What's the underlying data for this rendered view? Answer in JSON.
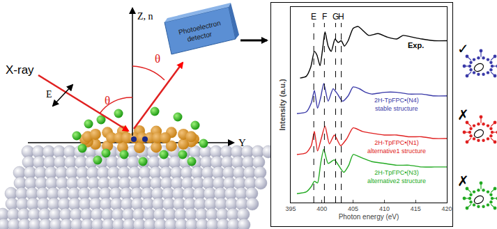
{
  "diagram": {
    "beam_label": "X-ray",
    "field_label": "E⃗",
    "normal_label": "Z, n⃗",
    "surface_axis_label": "Y",
    "angle_label": "θ",
    "detector_label": [
      "Photoelectron",
      "detector"
    ],
    "structure_marks": [
      "✓",
      "✗",
      "✗"
    ]
  },
  "chart_data": {
    "type": "line",
    "x_label": "Photon energy (eV)",
    "y_label": "Intensity (a.u.)",
    "xlim": [
      395,
      420
    ],
    "xticks": [
      395,
      400,
      405,
      410,
      415,
      420
    ],
    "ylim": [
      0,
      11
    ],
    "yticks": [],
    "tick_labels": "x",
    "grid": false,
    "peaks": [
      {
        "label": "E",
        "x": 398.7
      },
      {
        "label": "F",
        "x": 400.4
      },
      {
        "label": "G",
        "x": 402.2
      },
      {
        "label": "H",
        "x": 403.1
      }
    ],
    "series": [
      {
        "name": "Exp.",
        "color": "#000000",
        "x": [
          396.5,
          397.5,
          398.2,
          398.8,
          399.2,
          399.7,
          400.1,
          400.5,
          401.0,
          401.5,
          402.1,
          402.6,
          403.1,
          403.6,
          404.2,
          405.0,
          405.8,
          406.5,
          407.5,
          409.0,
          410.5,
          412.0,
          413.0,
          414.5,
          416.0,
          418.0,
          420.0
        ],
        "values": [
          7.0,
          7.1,
          7.6,
          8.5,
          8.3,
          7.7,
          8.6,
          9.6,
          8.8,
          8.5,
          9.2,
          9.0,
          9.1,
          8.8,
          9.1,
          9.8,
          9.9,
          9.7,
          9.4,
          9.5,
          9.3,
          9.2,
          9.4,
          9.3,
          9.2,
          9.1,
          9.1
        ]
      },
      {
        "name": "2H-TpFPC•(N4)",
        "subtitle": "stable structure",
        "color": "#3a3aa8",
        "x": [
          396.0,
          397.5,
          398.3,
          398.8,
          399.3,
          399.8,
          400.3,
          401.0,
          401.8,
          402.5,
          403.3,
          404.2,
          405.0,
          406.0,
          407.0,
          408.0,
          410.0,
          412.0,
          414.0,
          416.0,
          418.0,
          420.0
        ],
        "values": [
          5.0,
          5.1,
          5.6,
          6.3,
          5.3,
          5.9,
          6.7,
          5.7,
          6.4,
          6.1,
          5.7,
          6.0,
          6.5,
          6.4,
          6.2,
          6.1,
          6.2,
          6.2,
          6.1,
          6.1,
          6.0,
          6.0
        ]
      },
      {
        "name": "2H-TpFPC•(N1)",
        "subtitle": "alternative1 structure",
        "color": "#e02020",
        "x": [
          396.0,
          397.5,
          398.3,
          398.8,
          399.3,
          399.9,
          400.5,
          401.2,
          402.0,
          403.0,
          404.0,
          405.0,
          406.5,
          408.0,
          410.0,
          412.0,
          414.0,
          416.0,
          418.0,
          420.0
        ],
        "values": [
          2.7,
          2.8,
          3.2,
          4.0,
          2.9,
          3.6,
          4.3,
          3.3,
          3.8,
          3.2,
          3.6,
          4.2,
          4.0,
          3.9,
          3.8,
          3.8,
          3.7,
          3.7,
          3.6,
          3.6
        ]
      },
      {
        "name": "2H-TpFPC•(N3)",
        "subtitle": "alternative2 structure",
        "color": "#22aa22",
        "x": [
          396.0,
          397.5,
          398.3,
          398.8,
          399.3,
          399.8,
          400.3,
          401.0,
          402.0,
          403.5,
          404.3,
          405.0,
          406.5,
          408.0,
          410.0,
          412.0,
          414.0,
          416.0,
          418.0,
          420.0
        ],
        "values": [
          0.5,
          0.6,
          0.9,
          1.2,
          1.1,
          2.2,
          3.0,
          2.2,
          2.4,
          1.7,
          2.1,
          2.7,
          2.5,
          2.3,
          2.2,
          2.1,
          2.1,
          2.0,
          2.0,
          2.0
        ]
      }
    ]
  }
}
